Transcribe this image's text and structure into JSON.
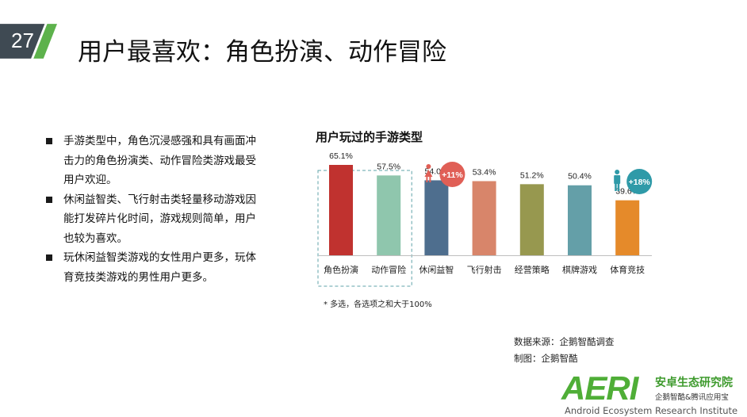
{
  "header": {
    "page_number": "27",
    "title": "用户最喜欢：角色扮演、动作冒险",
    "colors": {
      "badge_dark": "#3f4a53",
      "badge_green": "#5db24c"
    }
  },
  "bullets": [
    "手游类型中，角色沉浸感强和具有画面冲击力的角色扮演类、动作冒险类游戏最受用户欢迎。",
    "休闲益智类、飞行射击类轻量移动游戏因能打发碎片化时间，游戏规则简单，用户也较为喜欢。",
    "玩休闲益智类游戏的女性用户更多，玩体育竞技类游戏的男性用户更多。"
  ],
  "chart_data": {
    "type": "bar",
    "title": "用户玩过的手游类型",
    "categories": [
      "角色扮演",
      "动作冒险",
      "休闲益智",
      "飞行射击",
      "经营策略",
      "棋牌游戏",
      "体育竞技"
    ],
    "values": [
      65.1,
      57.5,
      54.0,
      53.4,
      51.2,
      50.4,
      39.6
    ],
    "value_labels": [
      "65.1%",
      "57.5%",
      "54.0%",
      "53.4%",
      "51.2%",
      "50.4%",
      "39.6%"
    ],
    "colors": [
      "#c0322f",
      "#8fc6ad",
      "#4e6e8e",
      "#d8856a",
      "#97984f",
      "#649fa8",
      "#e58a2a"
    ],
    "ylim": [
      0,
      70
    ],
    "grid": false,
    "highlight_categories": [
      "角色扮演",
      "动作冒险"
    ],
    "callouts": [
      {
        "category": "休闲益智",
        "icon": "female-icon",
        "label": "+11%",
        "color": "#e05f56"
      },
      {
        "category": "体育竞技",
        "icon": "male-icon",
        "label": "+18%",
        "color": "#2f9aa8"
      }
    ],
    "footnote": "*  多选，各选项之和大于100%"
  },
  "source": {
    "line1": "数据来源：企鹅智酷调查",
    "line2": "制图：企鹅智酷"
  },
  "logo": {
    "mark": "AERI",
    "cn_name": "安卓生态研究院",
    "cn_partners": "企鹅智酷&腾讯应用宝",
    "en_name": "Android Ecosystem Research Institute"
  }
}
